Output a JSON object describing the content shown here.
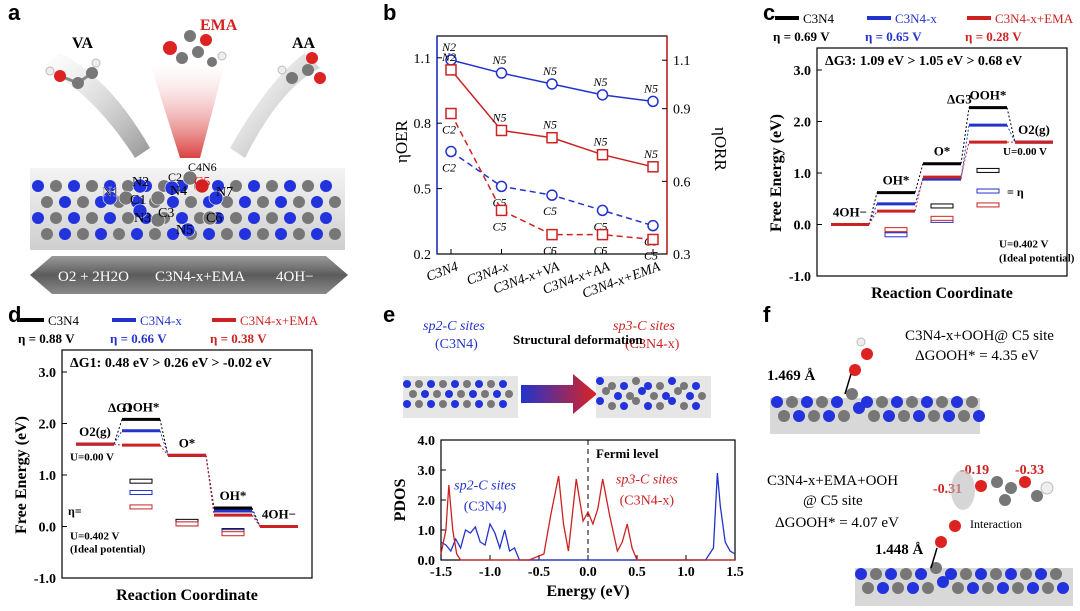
{
  "panel_letters": {
    "a": "a",
    "b": "b",
    "c": "c",
    "d": "d",
    "e": "e",
    "f": "f"
  },
  "panel_a": {
    "molecule_va": "VA",
    "molecule_ema": "EMA",
    "molecule_aa": "AA",
    "atom_labels": [
      "N1",
      "N2",
      "C1",
      "N3",
      "C2",
      "N4",
      "C4",
      "N6",
      "C5",
      "N7",
      "C3",
      "N5",
      "C6"
    ],
    "bottom_left": "O2 + 2H2O",
    "bottom_center": "C3N4-x+EMA",
    "bottom_right": "4OH−",
    "colors": {
      "ema": "#d42020",
      "nitrogen": "#2233dd",
      "carbon": "#777777",
      "oxygen": "#dd2222"
    }
  },
  "panel_b_text": {
    "left_axis_label": "ηOER",
    "right_axis_label": "ηORR"
  },
  "chart_data": [
    {
      "type": "line",
      "panel": "b",
      "categories": [
        "C3N4",
        "C3N4-x",
        "C3N4-x+VA",
        "C3N4-x+AA",
        "C3N4-x+EMA"
      ],
      "left_ylim": [
        0.2,
        1.2
      ],
      "left_yticks": [
        "0.2",
        "0.5",
        "0.8",
        "1.1"
      ],
      "right_ylim": [
        0.3,
        1.2
      ],
      "right_yticks": [
        "0.3",
        "0.6",
        "0.9",
        "1.1"
      ],
      "series": [
        {
          "name": "OER-N",
          "axis": "left",
          "color": "#2233cc",
          "dash": false,
          "marker": "circle",
          "values": [
            1.09,
            1.03,
            0.98,
            0.93,
            0.9
          ],
          "labels": [
            "N2",
            "N5",
            "N5",
            "N5",
            "N5"
          ]
        },
        {
          "name": "OER-C",
          "axis": "left",
          "color": "#2233cc",
          "dash": true,
          "marker": "circle",
          "values": [
            0.67,
            0.51,
            0.47,
            0.4,
            0.33
          ],
          "labels": [
            "C2",
            "C5",
            "C5",
            "C5",
            "C5"
          ]
        },
        {
          "name": "ORR-N",
          "axis": "right",
          "color": "#cc2222",
          "dash": false,
          "marker": "square",
          "values": [
            1.06,
            0.81,
            0.78,
            0.71,
            0.66
          ],
          "labels": [
            "N2",
            "N5",
            "N5",
            "N5",
            "N5"
          ]
        },
        {
          "name": "ORR-C",
          "axis": "right",
          "color": "#cc2222",
          "dash": true,
          "marker": "square",
          "values": [
            0.88,
            0.48,
            0.38,
            0.38,
            0.36
          ],
          "labels": [
            "C2",
            "C5",
            "C5",
            "C5",
            "C5"
          ]
        }
      ]
    },
    {
      "type": "line",
      "panel": "c",
      "title": "ΔG3: 1.09 eV > 1.05 eV > 0.68 eV",
      "xlabel": "Reaction Coordinate",
      "ylabel": "Free Energy (eV)",
      "ylim": [
        -1.0,
        3.0
      ],
      "yticks": [
        "-1.0",
        "0.0",
        "1.0",
        "2.0",
        "3.0"
      ],
      "legend": [
        {
          "name": "C3N4",
          "color": "#000000",
          "eta": "η = 0.69 V"
        },
        {
          "name": "C3N4-x",
          "color": "#2233cc",
          "eta": "η = 0.65 V"
        },
        {
          "name": "C3N4-x+EMA",
          "color": "#cc2222",
          "eta": "η = 0.28 V"
        }
      ],
      "steps": [
        "4OH−",
        "OH*",
        "O*",
        "OOH*",
        "O2(g)"
      ],
      "series": [
        {
          "name": "C3N4",
          "color": "#000000",
          "values": [
            0.0,
            0.62,
            1.18,
            2.27,
            1.6
          ]
        },
        {
          "name": "C3N4-x",
          "color": "#2233cc",
          "values": [
            0.0,
            0.4,
            0.88,
            1.93,
            1.6
          ]
        },
        {
          "name": "C3N4-x+EMA",
          "color": "#cc2222",
          "values": [
            0.0,
            0.26,
            0.92,
            1.6,
            1.6
          ]
        }
      ],
      "low_series": [
        {
          "name": "C3N4",
          "color": "#000000",
          "values": [
            0.0,
            -0.18,
            0.36,
            1.05,
            0.0
          ]
        },
        {
          "name": "C3N4-x",
          "color": "#2233cc",
          "values": [
            0.0,
            -0.2,
            0.08,
            0.65,
            0.0
          ]
        },
        {
          "name": "C3N4-x+EMA",
          "color": "#cc2222",
          "values": [
            0.0,
            -0.1,
            0.12,
            0.38,
            0.0
          ]
        }
      ],
      "annotations": {
        "dg": "ΔG3",
        "u0": "U=0.00 V",
        "u402": "U=0.402 V",
        "ideal": "(Ideal potential)",
        "eta": "= η"
      }
    },
    {
      "type": "line",
      "panel": "d",
      "title": "ΔG1: 0.48 eV > 0.26 eV > -0.02 eV",
      "xlabel": "Reaction Coordinate",
      "ylabel": "Free Energy (eV)",
      "ylim": [
        -1.0,
        3.0
      ],
      "yticks": [
        "-1.0",
        "0.0",
        "1.0",
        "2.0",
        "3.0"
      ],
      "legend": [
        {
          "name": "C3N4",
          "color": "#000000",
          "eta": "η = 0.88 V"
        },
        {
          "name": "C3N4-x",
          "color": "#2233cc",
          "eta": "η = 0.66 V"
        },
        {
          "name": "C3N4-x+EMA",
          "color": "#cc2222",
          "eta": "η = 0.38 V"
        }
      ],
      "steps": [
        "O2(g)",
        "OOH*",
        "O*",
        "OH*",
        "4OH−"
      ],
      "series": [
        {
          "name": "C3N4",
          "color": "#000000",
          "values": [
            1.6,
            2.08,
            1.38,
            0.36,
            0.0
          ]
        },
        {
          "name": "C3N4-x",
          "color": "#2233cc",
          "values": [
            1.6,
            1.86,
            1.38,
            0.3,
            0.0
          ]
        },
        {
          "name": "C3N4-x+EMA",
          "color": "#cc2222",
          "values": [
            1.6,
            1.58,
            1.38,
            0.22,
            0.0
          ]
        }
      ],
      "low_series": [
        {
          "name": "C3N4",
          "color": "#000000",
          "values": [
            0.0,
            0.88,
            0.1,
            -0.08,
            0.0
          ]
        },
        {
          "name": "C3N4-x",
          "color": "#2233cc",
          "values": [
            0.0,
            0.66,
            0.05,
            -0.1,
            0.0
          ]
        },
        {
          "name": "C3N4-x+EMA",
          "color": "#cc2222",
          "values": [
            0.0,
            0.38,
            0.05,
            -0.14,
            0.0
          ]
        }
      ],
      "annotations": {
        "dg": "ΔG1",
        "u0": "U=0.00 V",
        "u402": "U=0.402 V",
        "ideal": "(Ideal potential)",
        "eta": "η="
      }
    },
    {
      "type": "line",
      "panel": "e",
      "xlabel": "Energy (eV)",
      "ylabel": "PDOS",
      "xlim": [
        -1.5,
        1.5
      ],
      "ylim": [
        0.0,
        4.0
      ],
      "xticks": [
        "-1.5",
        "-1.0",
        "-0.5",
        "0.0",
        "0.5",
        "1.0",
        "1.5"
      ],
      "yticks": [
        "0.0",
        "1.0",
        "2.0",
        "3.0",
        "4.0"
      ],
      "series": [
        {
          "name": "sp2-C sites (C3N4)",
          "color": "#2233cc",
          "x": [
            -1.5,
            -1.45,
            -1.4,
            -1.35,
            -1.3,
            -1.25,
            -1.2,
            -1.15,
            -1.1,
            -1.05,
            -1.0,
            -0.95,
            -0.9,
            -0.85,
            -0.8,
            -0.75,
            -0.7,
            -0.6,
            0.6,
            1.2,
            1.28,
            1.32,
            1.35,
            1.4,
            1.45,
            1.5
          ],
          "y": [
            0.6,
            0.5,
            0.3,
            0.7,
            0.4,
            1.0,
            0.9,
            1.1,
            0.6,
            0.5,
            1.2,
            0.9,
            0.4,
            1.0,
            0.3,
            0.4,
            0.0,
            0.0,
            0.0,
            0.0,
            0.4,
            2.9,
            1.8,
            0.6,
            0.3,
            0.2
          ]
        },
        {
          "name": "sp3-C sites (C3N4-x)",
          "color": "#cc2222",
          "x": [
            -1.5,
            -1.45,
            -1.42,
            -1.38,
            -1.34,
            -1.3,
            -0.6,
            -0.45,
            -0.38,
            -0.3,
            -0.25,
            -0.2,
            -0.12,
            -0.05,
            0.0,
            0.05,
            0.1,
            0.15,
            0.22,
            0.3,
            0.35,
            0.4,
            0.45,
            0.5,
            1.5
          ],
          "y": [
            0.2,
            1.0,
            2.5,
            1.0,
            0.2,
            0.0,
            0.0,
            0.2,
            1.5,
            2.8,
            1.2,
            0.3,
            2.7,
            1.3,
            1.6,
            1.2,
            1.7,
            2.7,
            1.5,
            0.3,
            0.6,
            1.2,
            0.4,
            0.0,
            0.0
          ]
        }
      ],
      "annotations": {
        "fermi": "Fermi level",
        "sp2_title": "sp2-C sites",
        "sp2_sub": "(C3N4)",
        "sp3_title": "sp3-C sites",
        "sp3_sub": "(C3N4-x)",
        "deform": "Structural deformation"
      }
    }
  ],
  "panel_f": {
    "top_title": "C3N4-x+OOH@ C5 site",
    "top_dg": "ΔGOOH* = 4.35 eV",
    "top_bond": "1.469 Å",
    "bottom_title1": "C3N4-x+EMA+OOH",
    "bottom_title2": "@ C5 site",
    "bottom_dg": "ΔGOOH* = 4.07 eV",
    "bottom_bond": "1.448 Å",
    "charges": [
      "-0.19",
      "-0.33",
      "-0.31"
    ],
    "interaction": "Interaction"
  }
}
